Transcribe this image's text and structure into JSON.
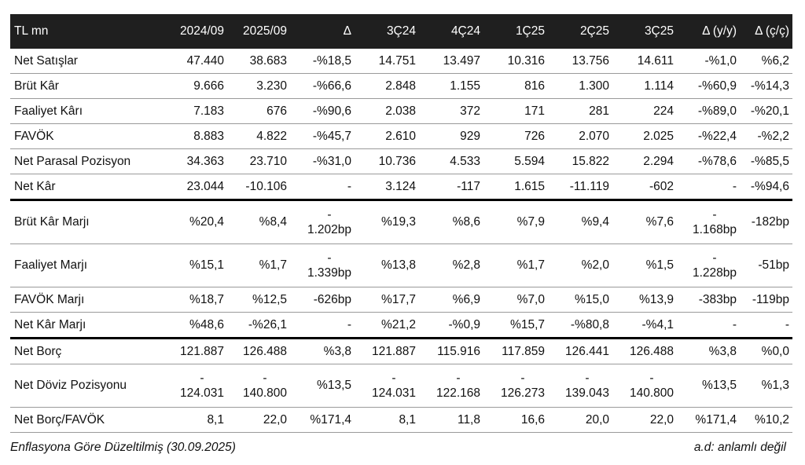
{
  "table": {
    "headers": [
      "TL mn",
      "2024/09",
      "2025/09",
      "Δ",
      "3Ç24",
      "4Ç24",
      "1Ç25",
      "2Ç25",
      "3Ç25",
      "Δ (y/y)",
      "Δ (ç/ç)"
    ],
    "rows": [
      {
        "label": "Net Satışlar",
        "cells": [
          "47.440",
          "38.683",
          "-%18,5",
          "14.751",
          "13.497",
          "10.316",
          "13.756",
          "14.611",
          "-%1,0",
          "%6,2"
        ]
      },
      {
        "label": "Brüt Kâr",
        "cells": [
          "9.666",
          "3.230",
          "-%66,6",
          "2.848",
          "1.155",
          "816",
          "1.300",
          "1.114",
          "-%60,9",
          "-%14,3"
        ]
      },
      {
        "label": "Faaliyet Kârı",
        "cells": [
          "7.183",
          "676",
          "-%90,6",
          "2.038",
          "372",
          "171",
          "281",
          "224",
          "-%89,0",
          "-%20,1"
        ]
      },
      {
        "label": "FAVÖK",
        "cells": [
          "8.883",
          "4.822",
          "-%45,7",
          "2.610",
          "929",
          "726",
          "2.070",
          "2.025",
          "-%22,4",
          "-%2,2"
        ]
      },
      {
        "label": "Net Parasal Pozisyon",
        "cells": [
          "34.363",
          "23.710",
          "-%31,0",
          "10.736",
          "4.533",
          "5.594",
          "15.822",
          "2.294",
          "-%78,6",
          "-%85,5"
        ]
      },
      {
        "label": "Net Kâr",
        "cells": [
          "23.044",
          "-10.106",
          "-",
          "3.124",
          "-117",
          "1.615",
          "-11.119",
          "-602",
          "-",
          "-%94,6"
        ]
      },
      {
        "label": "Brüt Kâr Marjı",
        "cells": [
          "%20,4",
          "%8,4",
          "-1.202bp",
          "%19,3",
          "%8,6",
          "%7,9",
          "%9,4",
          "%7,6",
          "-1.168bp",
          "-182bp"
        ]
      },
      {
        "label": "Faaliyet Marjı",
        "cells": [
          "%15,1",
          "%1,7",
          "-1.339bp",
          "%13,8",
          "%2,8",
          "%1,7",
          "%2,0",
          "%1,5",
          "-1.228bp",
          "-51bp"
        ]
      },
      {
        "label": "FAVÖK Marjı",
        "cells": [
          "%18,7",
          "%12,5",
          "-626bp",
          "%17,7",
          "%6,9",
          "%7,0",
          "%15,0",
          "%13,9",
          "-383bp",
          "-119bp"
        ]
      },
      {
        "label": "Net Kâr Marjı",
        "cells": [
          "%48,6",
          "-%26,1",
          "-",
          "%21,2",
          "-%0,9",
          "%15,7",
          "-%80,8",
          "-%4,1",
          "-",
          "-"
        ]
      },
      {
        "label": "Net Borç",
        "cells": [
          "121.887",
          "126.488",
          "%3,8",
          "121.887",
          "115.916",
          "117.859",
          "126.441",
          "126.488",
          "%3,8",
          "%0,0"
        ]
      },
      {
        "label": "Net Döviz Pozisyonu",
        "cells": [
          "-124.031",
          "-140.800",
          "%13,5",
          "-124.031",
          "-122.168",
          "-126.273",
          "-139.043",
          "-140.800",
          "%13,5",
          "%1,3"
        ]
      },
      {
        "label": "Net Borç/FAVÖK",
        "cells": [
          "8,1",
          "22,0",
          "%171,4",
          "8,1",
          "11,8",
          "16,6",
          "20,0",
          "22,0",
          "%171,4",
          "%10,2"
        ]
      }
    ]
  },
  "footer": {
    "left": "Enflasyona Göre Düzeltilmiş (30.09.2025)",
    "right": "a.d: anlamlı değil"
  }
}
